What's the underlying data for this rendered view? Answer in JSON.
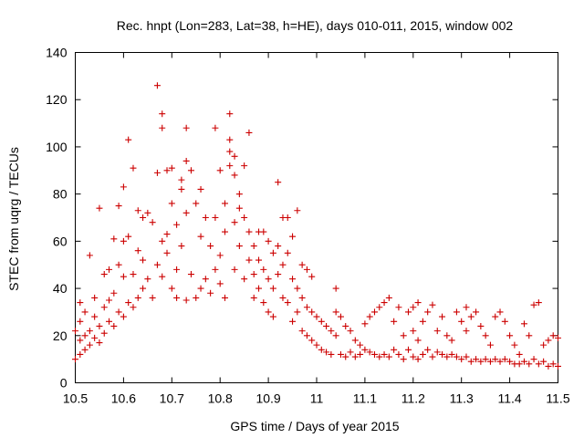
{
  "chart_data": {
    "type": "scatter",
    "title": "Rec. hnpt (Lon=283, Lat=38, h=HE), days 010-011, 2015, window 002",
    "xlabel": "GPS time / Days of year 2015",
    "ylabel": "STEC from uqrg / TECUs",
    "xlim": [
      10.5,
      11.5
    ],
    "ylim": [
      0,
      140
    ],
    "xticks": [
      "10.5",
      "10.6",
      "10.7",
      "10.8",
      "10.9",
      "11",
      "11.1",
      "11.2",
      "11.3",
      "11.4",
      "11.5"
    ],
    "yticks": [
      "0",
      "20",
      "40",
      "60",
      "80",
      "100",
      "120",
      "140"
    ],
    "grid": false,
    "marker": "+",
    "color": "#cc0000",
    "series": [
      {
        "points": [
          [
            10.5,
            22
          ],
          [
            10.5,
            10
          ],
          [
            10.51,
            18
          ],
          [
            10.51,
            12
          ],
          [
            10.51,
            26
          ],
          [
            10.51,
            34
          ],
          [
            10.52,
            14
          ],
          [
            10.52,
            20
          ],
          [
            10.52,
            30
          ],
          [
            10.53,
            54
          ],
          [
            10.53,
            16
          ],
          [
            10.53,
            22
          ],
          [
            10.54,
            19
          ],
          [
            10.54,
            28
          ],
          [
            10.54,
            36
          ],
          [
            10.55,
            74
          ],
          [
            10.55,
            17
          ],
          [
            10.55,
            24
          ],
          [
            10.56,
            46
          ],
          [
            10.56,
            21
          ],
          [
            10.56,
            32
          ],
          [
            10.57,
            35
          ],
          [
            10.57,
            26
          ],
          [
            10.57,
            48
          ],
          [
            10.58,
            61
          ],
          [
            10.58,
            24
          ],
          [
            10.58,
            38
          ],
          [
            10.59,
            75
          ],
          [
            10.59,
            30
          ],
          [
            10.59,
            50
          ],
          [
            10.6,
            83
          ],
          [
            10.6,
            28
          ],
          [
            10.6,
            60
          ],
          [
            10.6,
            45
          ],
          [
            10.61,
            103
          ],
          [
            10.61,
            34
          ],
          [
            10.61,
            62
          ],
          [
            10.62,
            91
          ],
          [
            10.62,
            46
          ],
          [
            10.62,
            32
          ],
          [
            10.63,
            73
          ],
          [
            10.63,
            56
          ],
          [
            10.63,
            36
          ],
          [
            10.64,
            70
          ],
          [
            10.64,
            52
          ],
          [
            10.64,
            40
          ],
          [
            10.65,
            72
          ],
          [
            10.65,
            44
          ],
          [
            10.66,
            68
          ],
          [
            10.66,
            36
          ],
          [
            10.67,
            126
          ],
          [
            10.67,
            89
          ],
          [
            10.67,
            50
          ],
          [
            10.68,
            114
          ],
          [
            10.68,
            108
          ],
          [
            10.68,
            60
          ],
          [
            10.68,
            45
          ],
          [
            10.69,
            90
          ],
          [
            10.69,
            63
          ],
          [
            10.69,
            55
          ],
          [
            10.7,
            91
          ],
          [
            10.7,
            76
          ],
          [
            10.7,
            40
          ],
          [
            10.71,
            67
          ],
          [
            10.71,
            48
          ],
          [
            10.71,
            36
          ],
          [
            10.72,
            86
          ],
          [
            10.72,
            82
          ],
          [
            10.72,
            58
          ],
          [
            10.73,
            108
          ],
          [
            10.73,
            94
          ],
          [
            10.73,
            72
          ],
          [
            10.73,
            35
          ],
          [
            10.74,
            90
          ],
          [
            10.74,
            46
          ],
          [
            10.75,
            76
          ],
          [
            10.75,
            36
          ],
          [
            10.76,
            82
          ],
          [
            10.76,
            62
          ],
          [
            10.76,
            40
          ],
          [
            10.77,
            70
          ],
          [
            10.77,
            44
          ],
          [
            10.78,
            58
          ],
          [
            10.78,
            38
          ],
          [
            10.79,
            108
          ],
          [
            10.79,
            70
          ],
          [
            10.79,
            48
          ],
          [
            10.8,
            90
          ],
          [
            10.8,
            54
          ],
          [
            10.8,
            42
          ],
          [
            10.81,
            76
          ],
          [
            10.81,
            64
          ],
          [
            10.81,
            36
          ],
          [
            10.82,
            114
          ],
          [
            10.82,
            103
          ],
          [
            10.82,
            98
          ],
          [
            10.82,
            92
          ],
          [
            10.83,
            96
          ],
          [
            10.83,
            88
          ],
          [
            10.83,
            68
          ],
          [
            10.83,
            48
          ],
          [
            10.84,
            80
          ],
          [
            10.84,
            74
          ],
          [
            10.84,
            58
          ],
          [
            10.85,
            92
          ],
          [
            10.85,
            70
          ],
          [
            10.85,
            44
          ],
          [
            10.86,
            106
          ],
          [
            10.86,
            64
          ],
          [
            10.86,
            52
          ],
          [
            10.87,
            58
          ],
          [
            10.87,
            46
          ],
          [
            10.87,
            36
          ],
          [
            10.88,
            64
          ],
          [
            10.88,
            52
          ],
          [
            10.88,
            40
          ],
          [
            10.89,
            64
          ],
          [
            10.89,
            48
          ],
          [
            10.89,
            34
          ],
          [
            10.9,
            60
          ],
          [
            10.9,
            44
          ],
          [
            10.9,
            30
          ],
          [
            10.91,
            55
          ],
          [
            10.91,
            40
          ],
          [
            10.91,
            28
          ],
          [
            10.92,
            85
          ],
          [
            10.92,
            58
          ],
          [
            10.92,
            46
          ],
          [
            10.93,
            70
          ],
          [
            10.93,
            50
          ],
          [
            10.93,
            36
          ],
          [
            10.94,
            70
          ],
          [
            10.94,
            55
          ],
          [
            10.94,
            34
          ],
          [
            10.95,
            62
          ],
          [
            10.95,
            44
          ],
          [
            10.95,
            26
          ],
          [
            10.96,
            73
          ],
          [
            10.96,
            40
          ],
          [
            10.96,
            30
          ],
          [
            10.97,
            50
          ],
          [
            10.97,
            36
          ],
          [
            10.97,
            22
          ],
          [
            10.98,
            48
          ],
          [
            10.98,
            32
          ],
          [
            10.98,
            20
          ],
          [
            10.99,
            45
          ],
          [
            10.99,
            30
          ],
          [
            10.99,
            18
          ],
          [
            11.0,
            28
          ],
          [
            11.0,
            16
          ],
          [
            11.01,
            26
          ],
          [
            11.01,
            14
          ],
          [
            11.02,
            24
          ],
          [
            11.02,
            13
          ],
          [
            11.03,
            22
          ],
          [
            11.03,
            12
          ],
          [
            11.04,
            40
          ],
          [
            11.04,
            30
          ],
          [
            11.04,
            20
          ],
          [
            11.05,
            28
          ],
          [
            11.05,
            12
          ],
          [
            11.06,
            24
          ],
          [
            11.06,
            11
          ],
          [
            11.07,
            22
          ],
          [
            11.07,
            13
          ],
          [
            11.08,
            18
          ],
          [
            11.08,
            11
          ],
          [
            11.09,
            16
          ],
          [
            11.09,
            12
          ],
          [
            11.1,
            14
          ],
          [
            11.1,
            25
          ],
          [
            11.11,
            28
          ],
          [
            11.11,
            13
          ],
          [
            11.12,
            30
          ],
          [
            11.12,
            12
          ],
          [
            11.13,
            32
          ],
          [
            11.13,
            11
          ],
          [
            11.14,
            34
          ],
          [
            11.14,
            12
          ],
          [
            11.15,
            36
          ],
          [
            11.15,
            11
          ],
          [
            11.16,
            26
          ],
          [
            11.16,
            14
          ],
          [
            11.17,
            32
          ],
          [
            11.17,
            12
          ],
          [
            11.18,
            20
          ],
          [
            11.18,
            10
          ],
          [
            11.19,
            30
          ],
          [
            11.19,
            14
          ],
          [
            11.2,
            32
          ],
          [
            11.2,
            22
          ],
          [
            11.2,
            11
          ],
          [
            11.21,
            34
          ],
          [
            11.21,
            18
          ],
          [
            11.21,
            10
          ],
          [
            11.22,
            26
          ],
          [
            11.22,
            12
          ],
          [
            11.23,
            30
          ],
          [
            11.23,
            14
          ],
          [
            11.24,
            33
          ],
          [
            11.24,
            11
          ],
          [
            11.25,
            22
          ],
          [
            11.25,
            13
          ],
          [
            11.26,
            28
          ],
          [
            11.26,
            12
          ],
          [
            11.27,
            20
          ],
          [
            11.27,
            11
          ],
          [
            11.28,
            18
          ],
          [
            11.28,
            12
          ],
          [
            11.29,
            30
          ],
          [
            11.29,
            11
          ],
          [
            11.3,
            26
          ],
          [
            11.3,
            10
          ],
          [
            11.31,
            32
          ],
          [
            11.31,
            22
          ],
          [
            11.31,
            11
          ],
          [
            11.32,
            28
          ],
          [
            11.32,
            9
          ],
          [
            11.33,
            30
          ],
          [
            11.33,
            10
          ],
          [
            11.34,
            24
          ],
          [
            11.34,
            9
          ],
          [
            11.35,
            20
          ],
          [
            11.35,
            10
          ],
          [
            11.36,
            16
          ],
          [
            11.36,
            9
          ],
          [
            11.37,
            28
          ],
          [
            11.37,
            10
          ],
          [
            11.38,
            30
          ],
          [
            11.38,
            9
          ],
          [
            11.39,
            26
          ],
          [
            11.39,
            10
          ],
          [
            11.4,
            20
          ],
          [
            11.4,
            9
          ],
          [
            11.41,
            16
          ],
          [
            11.41,
            8
          ],
          [
            11.42,
            12
          ],
          [
            11.42,
            8
          ],
          [
            11.43,
            25
          ],
          [
            11.43,
            9
          ],
          [
            11.44,
            20
          ],
          [
            11.44,
            8
          ],
          [
            11.45,
            33
          ],
          [
            11.45,
            10
          ],
          [
            11.46,
            34
          ],
          [
            11.46,
            8
          ],
          [
            11.47,
            16
          ],
          [
            11.47,
            9
          ],
          [
            11.48,
            18
          ],
          [
            11.48,
            7
          ],
          [
            11.49,
            20
          ],
          [
            11.49,
            8
          ],
          [
            11.5,
            19
          ],
          [
            11.5,
            7
          ]
        ]
      }
    ]
  }
}
